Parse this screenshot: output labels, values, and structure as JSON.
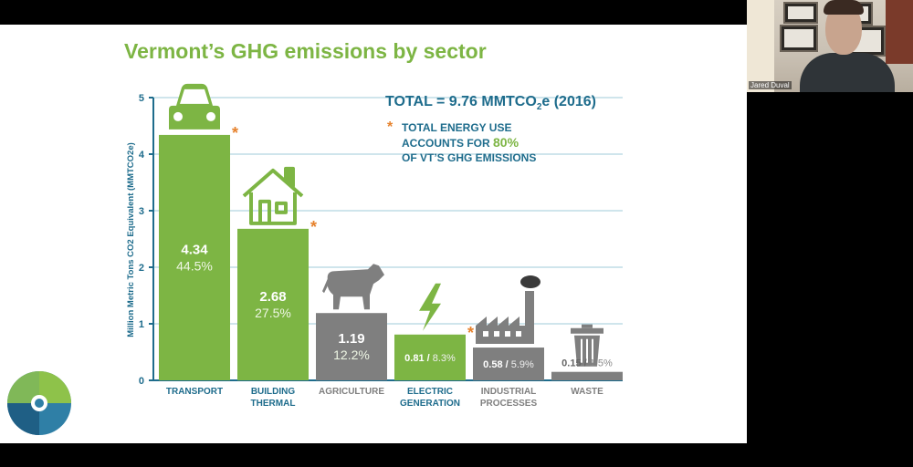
{
  "presenter": {
    "name": "Jared Duval"
  },
  "slide": {
    "title": "Vermont’s GHG emissions by sector"
  },
  "callouts": {
    "total_prefix": "TOTAL = 9.76 MMTCO",
    "total_sub": "2",
    "total_suffix": "e (2016)",
    "note_line1": "TOTAL ENERGY USE",
    "note_line2_prefix": "ACCOUNTS FOR ",
    "note_highlight": "80%",
    "note_line3": "OF VT’S GHG EMISSIONS",
    "star": "*"
  },
  "colors": {
    "energy": "#7db544",
    "non_energy": "#7f7f7f",
    "axis": "#1e6c8c",
    "grid": "#9fcbd9",
    "star": "#e6822d"
  },
  "icons": [
    "car-icon",
    "house-icon",
    "cow-icon",
    "lightning-icon",
    "factory-icon",
    "trash-can-icon"
  ],
  "nav": {
    "prev": "🡄",
    "pen": "✎",
    "menu": "▤",
    "next": "🡆"
  },
  "chart_data": {
    "type": "bar",
    "title": "Vermont’s GHG emissions by sector",
    "ylabel": "Million Metric Tons CO2 Equivalent (MMTCO2e)",
    "ylim": [
      0,
      5
    ],
    "yticks": [
      "0",
      "1",
      "2",
      "3",
      "4",
      "5"
    ],
    "grid": true,
    "categories": [
      {
        "line1": "TRANSPORT",
        "line2": ""
      },
      {
        "line1": "BUILDING",
        "line2": "THERMAL"
      },
      {
        "line1": "AGRICULTURE",
        "line2": ""
      },
      {
        "line1": "ELECTRIC",
        "line2": "GENERATION"
      },
      {
        "line1": "INDUSTRIAL",
        "line2": "PROCESSES"
      },
      {
        "line1": "WASTE",
        "line2": ""
      }
    ],
    "values": [
      4.34,
      2.68,
      1.19,
      0.81,
      0.58,
      0.15
    ],
    "value_labels": [
      "4.34",
      "2.68",
      "1.19",
      "0.81",
      "0.58",
      "0.15"
    ],
    "percent_labels": [
      "44.5%",
      "27.5%",
      "12.2%",
      "8.3%",
      "5.9%",
      "1.5%"
    ],
    "energy_use": [
      true,
      true,
      false,
      true,
      false,
      false
    ]
  }
}
